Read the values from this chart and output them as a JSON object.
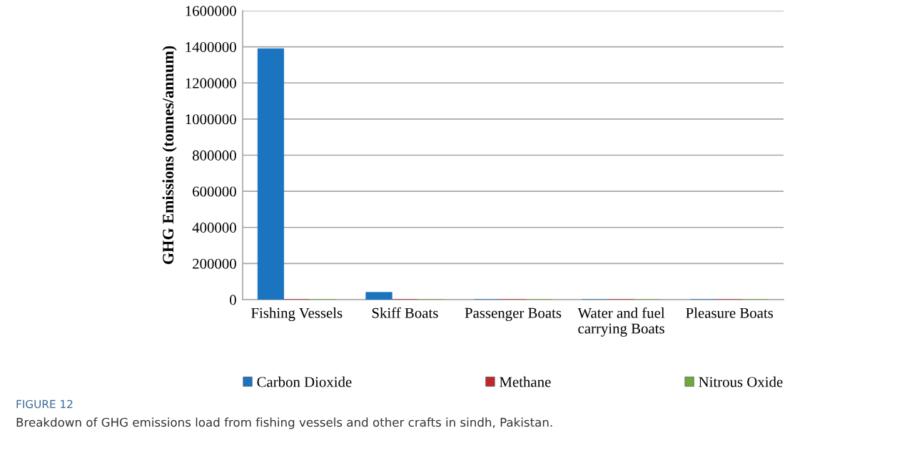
{
  "chart_data": {
    "type": "bar",
    "ylabel": "GHG Emissions (tonnes/annum)",
    "categories": [
      "Fishing Vessels",
      "Skiff Boats",
      "Passenger Boats",
      "Water and fuel\ncarrying Boats",
      "Pleasure Boats"
    ],
    "series": [
      {
        "name": "Carbon Dioxide",
        "color": "#1a74c0",
        "values": [
          1390000,
          40000,
          0,
          0,
          0
        ]
      },
      {
        "name": "Methane",
        "color": "#c0272d",
        "values": [
          0,
          0,
          0,
          0,
          0
        ]
      },
      {
        "name": "Nitrous Oxide",
        "color": "#6fa83a",
        "values": [
          0,
          0,
          0,
          0,
          0
        ]
      }
    ],
    "ylim": [
      0,
      1600000
    ],
    "yticks": [
      0,
      200000,
      400000,
      600000,
      800000,
      1000000,
      1200000,
      1400000,
      1600000
    ],
    "grid": "y",
    "legend": "bottom",
    "annotations": [
      "FIGURE 12",
      "Breakdown of GHG emissions load from fishing vessels and other crafts in sindh, Pakistan."
    ]
  }
}
